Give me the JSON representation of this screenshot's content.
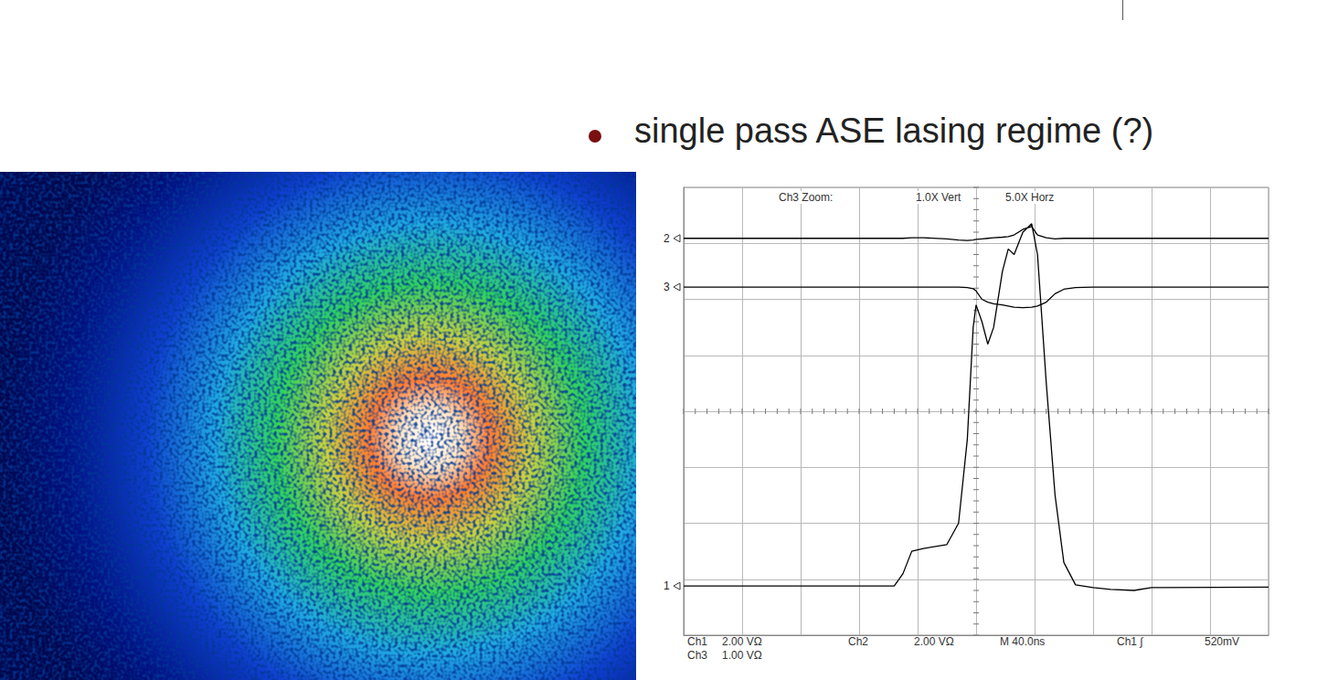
{
  "slide": {
    "bullet": "single pass ASE lasing regime (?)"
  },
  "chart_data": {
    "type": "line",
    "annotations": {
      "header": [
        "Ch3 Zoom:",
        "1.0X Vert",
        "5.0X Horz"
      ],
      "footer": [
        [
          "Ch1",
          "2.00 VΩ",
          "Ch2",
          "2.00 VΩ",
          "M 40.0ns",
          "Ch1 ∫",
          "520mV"
        ],
        [
          "Ch3",
          "1.00 VΩ"
        ]
      ]
    },
    "x": [
      0,
      3.6,
      3.75,
      3.9,
      4.1,
      4.5,
      4.7,
      4.85,
      4.95,
      5.0,
      5.1,
      5.2,
      5.3,
      5.45,
      5.55,
      5.65,
      5.8,
      5.95,
      6.05,
      6.2,
      6.35,
      6.5,
      6.7,
      7.0,
      7.3,
      7.7,
      8.0,
      10
    ],
    "series": [
      {
        "name": "2",
        "color": "#000000",
        "values": [
          7.09,
          7.09,
          7.09,
          7.1,
          7.1,
          7.08,
          7.06,
          7.05,
          7.06,
          7.07,
          7.08,
          7.09,
          7.1,
          7.11,
          7.12,
          7.15,
          7.25,
          7.3,
          7.15,
          7.1,
          7.08,
          7.09,
          7.09,
          7.09,
          7.09,
          7.09,
          7.09,
          7.09
        ]
      },
      {
        "name": "3",
        "color": "#000000",
        "values": [
          6.22,
          6.22,
          6.22,
          6.22,
          6.22,
          6.22,
          6.22,
          6.21,
          6.19,
          6.15,
          6.0,
          5.95,
          5.92,
          5.9,
          5.88,
          5.86,
          5.85,
          5.86,
          5.88,
          5.95,
          6.1,
          6.18,
          6.21,
          6.22,
          6.22,
          6.22,
          6.22,
          6.22
        ]
      },
      {
        "name": "1",
        "color": "#000000",
        "values": [
          0.88,
          0.88,
          1.1,
          1.5,
          1.55,
          1.62,
          2.0,
          3.5,
          5.5,
          5.9,
          5.6,
          5.2,
          5.5,
          6.5,
          6.9,
          6.8,
          7.2,
          7.35,
          6.8,
          4.5,
          2.5,
          1.3,
          0.9,
          0.85,
          0.82,
          0.8,
          0.85,
          0.86
        ]
      }
    ],
    "xlim": [
      0,
      10
    ],
    "xticks": [
      0,
      1,
      2,
      3,
      4,
      5,
      6,
      7,
      8,
      9,
      10
    ],
    "ylim": [
      0,
      8
    ],
    "yticks": [
      0,
      1,
      2,
      3,
      4,
      5,
      6,
      7,
      8
    ],
    "grid": true,
    "tick_labels": false,
    "marker": "none",
    "line_style": "solid"
  }
}
